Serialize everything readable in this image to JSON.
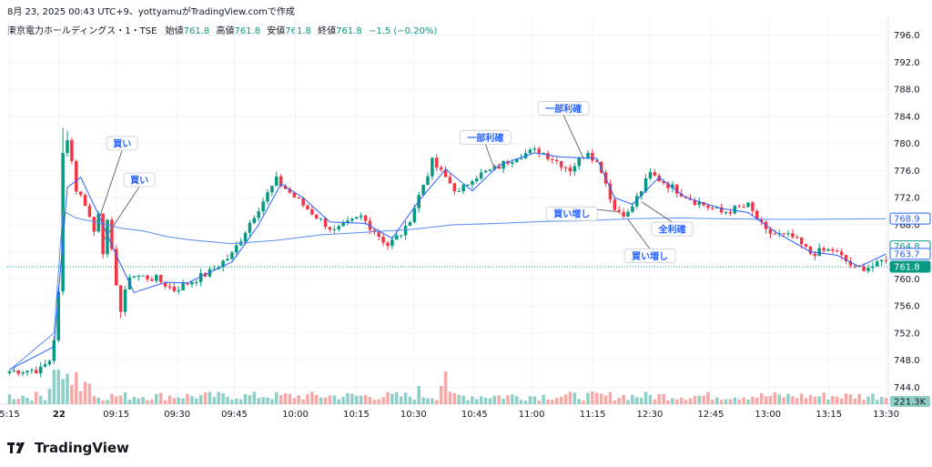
{
  "header": {
    "caption": "8月 23, 2025 00:43 UTC+9、yottyamuがTradingView.comで作成",
    "symbol": "東京電力ホールディングス・1・TSE",
    "open_label": "始値",
    "open": "761.8",
    "high_label": "高値",
    "high": "761.8",
    "low_label": "安値",
    "low": "761.8",
    "close_label": "終値",
    "close": "761.8",
    "change": "−1.5 (−0.20%)"
  },
  "brand": "TradingView",
  "colors": {
    "up": "#089981",
    "down": "#f23645",
    "ma_short": "#2962ff",
    "ma_long": "#5b8def",
    "vol_up": "#8ed0c5",
    "vol_down": "#f7a9a7"
  },
  "chart_data": {
    "type": "candlestick",
    "interval": "1 minute",
    "y_ticks": [
      "796.0",
      "792.0",
      "788.0",
      "784.0",
      "780.0",
      "776.0",
      "772.0",
      "768.0",
      "764.0",
      "760.0",
      "756.0",
      "752.0",
      "748.0",
      "744.0"
    ],
    "x_ticks": [
      "5:15",
      "22",
      "09:15",
      "09:30",
      "09:45",
      "10:00",
      "10:15",
      "10:30",
      "10:45",
      "11:00",
      "11:15",
      "12:30",
      "12:45",
      "13:00",
      "13:15",
      "13:30"
    ],
    "ylim": [
      741.5,
      798.5
    ],
    "price_labels": {
      "ma_long": "768.9",
      "ma_short_a": "764.8",
      "ma_short_b": "763.7",
      "last": "761.8",
      "volume": "221.3K"
    },
    "annotations": [
      {
        "text": "買い",
        "price": 768.6,
        "bar": 20
      },
      {
        "text": "買い",
        "price": 765.5,
        "bar": 21
      },
      {
        "text": "一部利確",
        "price": 776.2,
        "bar": 109
      },
      {
        "text": "一部利確",
        "price": 777.8,
        "bar": 129
      },
      {
        "text": "買い増し",
        "price": 769.9,
        "bar": 137
      },
      {
        "text": "買い増し",
        "price": 768.8,
        "bar": 139
      },
      {
        "text": "全利確",
        "price": 771.4,
        "bar": 142
      }
    ],
    "key_levels": [
      [
        0,
        746.4
      ],
      [
        7,
        746.6
      ],
      [
        9,
        748.0
      ],
      [
        10,
        751.2
      ],
      [
        11,
        757.8
      ],
      [
        12,
        778.4
      ],
      [
        13,
        781.0
      ],
      [
        14,
        777.4
      ],
      [
        15,
        773.2
      ],
      [
        17,
        771.2
      ],
      [
        19,
        767.0
      ],
      [
        20,
        770.0
      ],
      [
        21,
        764.2
      ],
      [
        22,
        768.2
      ],
      [
        24,
        759.5
      ],
      [
        25,
        755.2
      ],
      [
        27,
        760.6
      ],
      [
        33,
        760.0
      ],
      [
        37,
        758.4
      ],
      [
        45,
        761.0
      ],
      [
        50,
        763.6
      ],
      [
        55,
        769.5
      ],
      [
        60,
        774.6
      ],
      [
        66,
        770.9
      ],
      [
        73,
        767.0
      ],
      [
        79,
        769.2
      ],
      [
        85,
        765.0
      ],
      [
        89,
        767.3
      ],
      [
        95,
        777.3
      ],
      [
        101,
        772.6
      ],
      [
        104,
        775.0
      ],
      [
        109,
        776.2
      ],
      [
        114,
        778.2
      ],
      [
        119,
        779.0
      ],
      [
        126,
        776.2
      ],
      [
        130,
        779.0
      ],
      [
        133,
        776.2
      ],
      [
        136,
        770.2
      ],
      [
        139,
        769.6
      ],
      [
        144,
        775.5
      ],
      [
        149,
        773.5
      ],
      [
        154,
        771.5
      ],
      [
        160,
        769.8
      ],
      [
        166,
        770.8
      ],
      [
        170,
        766.9
      ],
      [
        176,
        766.1
      ],
      [
        180,
        763.8
      ],
      [
        185,
        764.3
      ],
      [
        190,
        761.5
      ],
      [
        195,
        762.0
      ],
      [
        197,
        763.2
      ]
    ],
    "ma_long": [
      [
        0,
        746.5
      ],
      [
        10,
        752.0
      ],
      [
        12,
        770.0
      ],
      [
        15,
        769.0
      ],
      [
        20,
        768.3
      ],
      [
        25,
        767.5
      ],
      [
        30,
        767.1
      ],
      [
        35,
        766.3
      ],
      [
        40,
        765.8
      ],
      [
        50,
        765.2
      ],
      [
        60,
        765.7
      ],
      [
        70,
        766.5
      ],
      [
        80,
        766.9
      ],
      [
        90,
        767.3
      ],
      [
        100,
        768.0
      ],
      [
        110,
        768.2
      ],
      [
        120,
        768.5
      ],
      [
        130,
        768.6
      ],
      [
        140,
        768.9
      ],
      [
        150,
        769.0
      ],
      [
        160,
        768.9
      ],
      [
        170,
        768.8
      ],
      [
        180,
        768.8
      ],
      [
        197,
        768.9
      ]
    ],
    "ma_short": [
      [
        0,
        746.6
      ],
      [
        10,
        750.0
      ],
      [
        13,
        773.5
      ],
      [
        16,
        775.0
      ],
      [
        20,
        769.5
      ],
      [
        24,
        763.5
      ],
      [
        28,
        758.0
      ],
      [
        35,
        759.5
      ],
      [
        40,
        759.4
      ],
      [
        50,
        762.5
      ],
      [
        56,
        768.0
      ],
      [
        61,
        774.0
      ],
      [
        66,
        772.0
      ],
      [
        72,
        768.4
      ],
      [
        80,
        768.2
      ],
      [
        86,
        766.0
      ],
      [
        92,
        771.5
      ],
      [
        98,
        776.2
      ],
      [
        104,
        773.0
      ],
      [
        110,
        776.8
      ],
      [
        118,
        778.6
      ],
      [
        124,
        778.0
      ],
      [
        132,
        777.8
      ],
      [
        136,
        772.0
      ],
      [
        140,
        771.0
      ],
      [
        146,
        775.0
      ],
      [
        152,
        772.0
      ],
      [
        160,
        770.4
      ],
      [
        166,
        769.8
      ],
      [
        172,
        767.0
      ],
      [
        180,
        764.0
      ],
      [
        186,
        763.5
      ],
      [
        191,
        761.8
      ],
      [
        197,
        763.7
      ]
    ]
  }
}
